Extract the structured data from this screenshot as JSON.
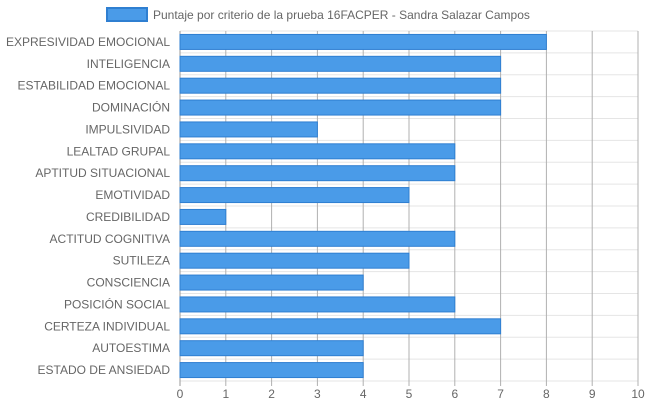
{
  "chart_data": {
    "type": "bar",
    "orientation": "horizontal",
    "categories": [
      "EXPRESIVIDAD EMOCIONAL",
      "INTELIGENCIA",
      "ESTABILIDAD EMOCIONAL",
      "DOMINACIÓN",
      "IMPULSIVIDAD",
      "LEALTAD GRUPAL",
      "APTITUD SITUACIONAL",
      "EMOTIVIDAD",
      "CREDIBILIDAD",
      "ACTITUD COGNITIVA",
      "SUTILEZA",
      "CONSCIENCIA",
      "POSICIÓN SOCIAL",
      "CERTEZA INDIVIDUAL",
      "AUTOESTIMA",
      "ESTADO DE ANSIEDAD"
    ],
    "series": [
      {
        "name": "Puntaje por criterio de la prueba 16FACPER - Sandra Salazar Campos",
        "values": [
          8,
          7,
          7,
          7,
          3,
          6,
          6,
          5,
          1,
          6,
          5,
          4,
          6,
          7,
          4,
          4
        ]
      }
    ],
    "xlim": [
      0,
      10
    ],
    "xticks": [
      "0",
      "1",
      "2",
      "3",
      "4",
      "5",
      "6",
      "7",
      "8",
      "9",
      "10"
    ],
    "grid": true,
    "legend_position": "top-center",
    "colors": {
      "bar_fill": "#4a9be8",
      "bar_stroke": "#2f7fd1",
      "grid": "#e5e5e5",
      "grid_major": "#b0b0b0",
      "text": "#666666"
    }
  }
}
